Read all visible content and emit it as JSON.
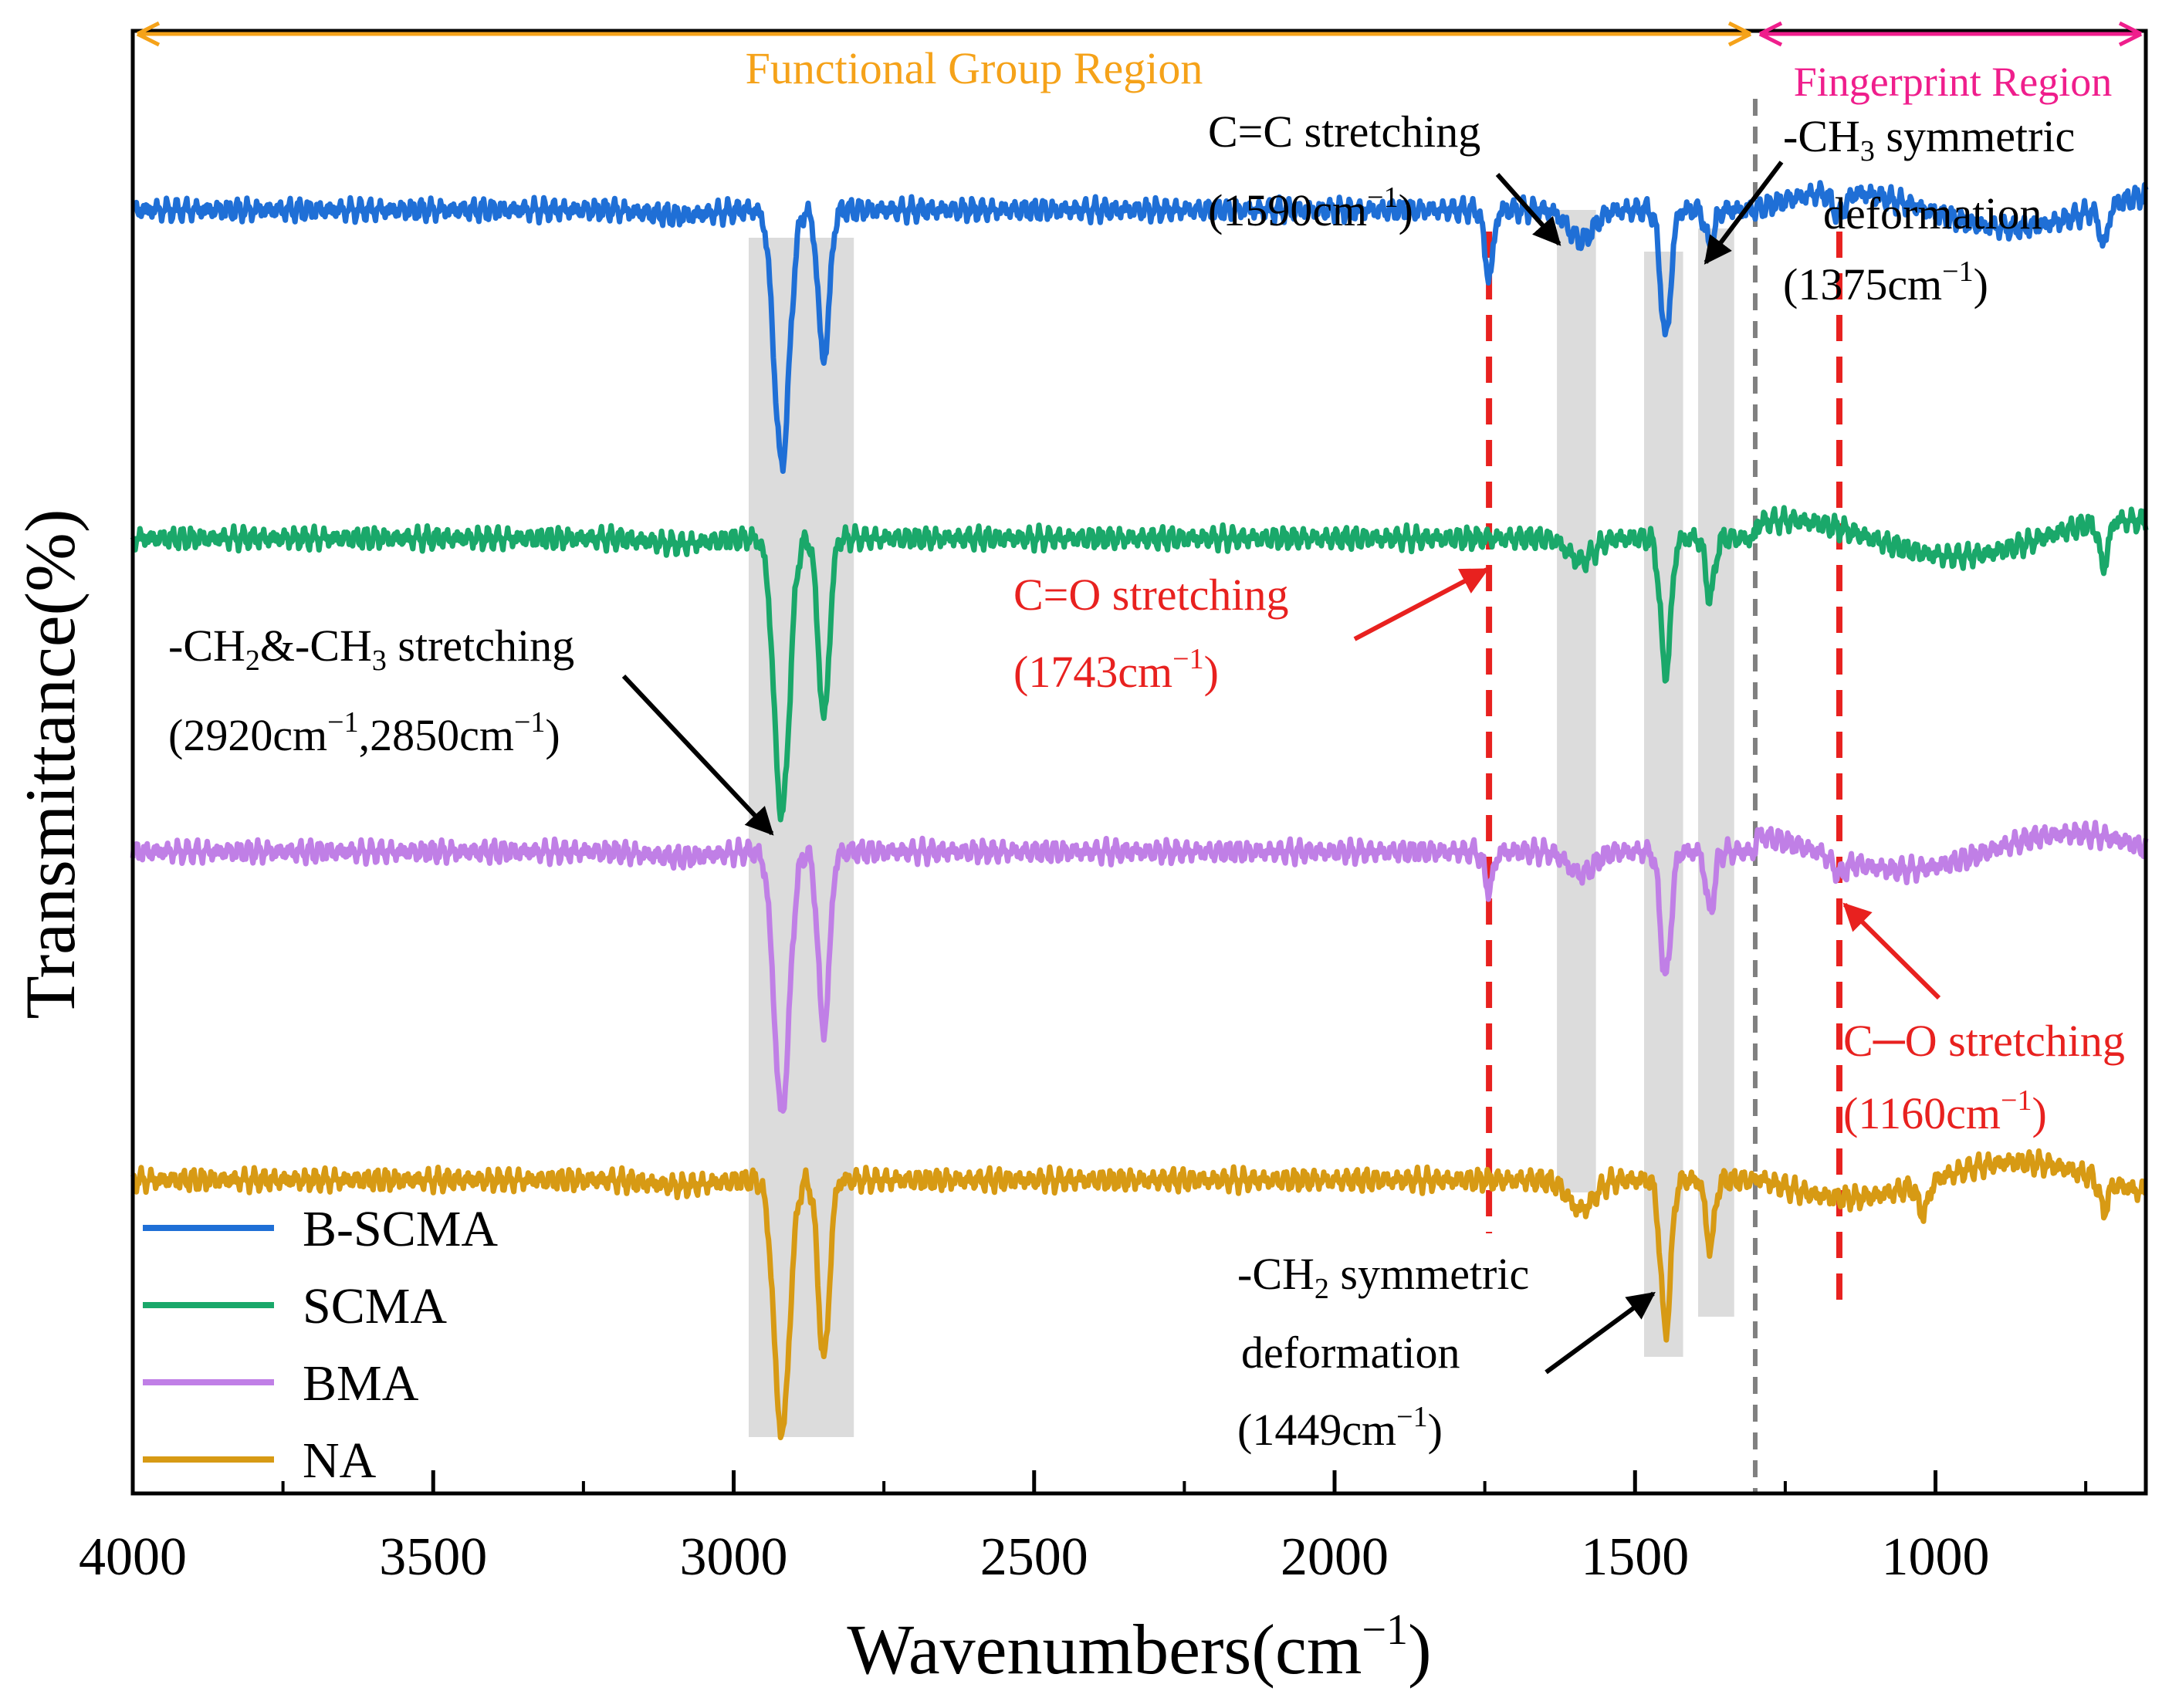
{
  "chart_data": {
    "type": "line",
    "title": "",
    "xlabel": "Wavenumbers(cm",
    "xlabel_sup": "−1",
    "xlabel_close": ")",
    "ylabel": "Transmittance(%)",
    "xlim": [
      4000,
      650
    ],
    "x_reversed": true,
    "xticks": [
      4000,
      3500,
      3000,
      2500,
      2000,
      1500,
      1000
    ],
    "yticks_shown": false,
    "series": [
      {
        "name": "B-SCMA",
        "color": "#1f6fd6",
        "baseline_level": 0.86,
        "features": [
          {
            "center": 2920,
            "depth": 0.17,
            "width": 18
          },
          {
            "center": 2850,
            "depth": 0.1,
            "width": 13
          },
          {
            "center": 1743,
            "depth": 0.045,
            "width": 10
          },
          {
            "center": 1590,
            "depth": 0.02,
            "width": 30
          },
          {
            "center": 1449,
            "depth": 0.085,
            "width": 12
          },
          {
            "center": 1375,
            "depth": 0.025,
            "width": 10
          },
          {
            "center": 1160,
            "depth": 0.015,
            "width": 15
          },
          {
            "center": 720,
            "depth": 0.025,
            "width": 10
          }
        ]
      },
      {
        "name": "SCMA",
        "color": "#1aa86a",
        "baseline_level": 0.64,
        "features": [
          {
            "center": 2920,
            "depth": 0.185,
            "width": 18
          },
          {
            "center": 2850,
            "depth": 0.12,
            "width": 13
          },
          {
            "center": 1590,
            "depth": 0.015,
            "width": 30
          },
          {
            "center": 1449,
            "depth": 0.09,
            "width": 12
          },
          {
            "center": 1375,
            "depth": 0.04,
            "width": 10
          },
          {
            "center": 720,
            "depth": 0.03,
            "width": 10
          }
        ]
      },
      {
        "name": "BMA",
        "color": "#c07fe6",
        "baseline_level": 0.43,
        "features": [
          {
            "center": 2920,
            "depth": 0.175,
            "width": 18
          },
          {
            "center": 2850,
            "depth": 0.12,
            "width": 13
          },
          {
            "center": 1743,
            "depth": 0.025,
            "width": 10
          },
          {
            "center": 1590,
            "depth": 0.015,
            "width": 30
          },
          {
            "center": 1449,
            "depth": 0.085,
            "width": 12
          },
          {
            "center": 1375,
            "depth": 0.04,
            "width": 10
          },
          {
            "center": 1160,
            "depth": 0.01,
            "width": 15
          }
        ]
      },
      {
        "name": "NA",
        "color": "#d79a14",
        "baseline_level": 0.21,
        "features": [
          {
            "center": 2920,
            "depth": 0.17,
            "width": 18
          },
          {
            "center": 2850,
            "depth": 0.12,
            "width": 13
          },
          {
            "center": 1590,
            "depth": 0.02,
            "width": 30
          },
          {
            "center": 1449,
            "depth": 0.1,
            "width": 12
          },
          {
            "center": 1375,
            "depth": 0.045,
            "width": 10
          },
          {
            "center": 1020,
            "depth": 0.02,
            "width": 12
          },
          {
            "center": 720,
            "depth": 0.02,
            "width": 10
          }
        ]
      }
    ],
    "shaded_bands": [
      {
        "from": 2975,
        "to": 2800
      },
      {
        "from": 1630,
        "to": 1565
      },
      {
        "from": 1485,
        "to": 1420
      },
      {
        "from": 1395,
        "to": 1335
      }
    ],
    "dashed_lines": [
      {
        "x": 1743,
        "color": "#e8211f"
      },
      {
        "x": 1160,
        "color": "#e8211f"
      },
      {
        "x": 1300,
        "color": "#808080"
      }
    ],
    "regions": [
      {
        "label": "Functional Group Region",
        "from": 4000,
        "to": 1300,
        "color": "#f5a219"
      },
      {
        "label": "Fingerprint Region",
        "from": 1300,
        "to": 650,
        "color": "#ef1e8c"
      }
    ],
    "annotations": [
      {
        "line1": "-CH",
        "sub1": "2",
        "mid": "&-CH",
        "sub2": "3",
        "tail": " stretching",
        "line2": "(2920cm",
        "sup": "−1",
        "line2b": ",2850cm",
        "sup2": "−1",
        "line2c": ")",
        "color": "#000000"
      },
      {
        "line1": "C=C stretching",
        "line2": "(1590cm",
        "sup": "−1",
        "line2c": ")",
        "color": "#000000"
      },
      {
        "line1": "-CH",
        "sub1": "3",
        "tail": " symmetric",
        "line2": "deformation",
        "line3": "(1375cm",
        "sup": "−1",
        "line3c": ")",
        "color": "#000000"
      },
      {
        "line1": "C=O stretching",
        "line2": "(1743cm",
        "sup": "−1",
        "line2c": ")",
        "color": "#e8211f"
      },
      {
        "line1": "C─O stretching",
        "line2": "(1160cm",
        "sup": "−1",
        "line2c": ")",
        "color": "#e8211f"
      },
      {
        "line1": "-CH",
        "sub1": "2",
        "tail": " symmetric",
        "line2": "deformation",
        "line3": "(1449cm",
        "sup": "−1",
        "line3c": ")",
        "color": "#000000"
      }
    ],
    "legend": {
      "placement": "bottom-left",
      "entries": [
        "B-SCMA",
        "SCMA",
        "BMA",
        "NA"
      ]
    }
  }
}
